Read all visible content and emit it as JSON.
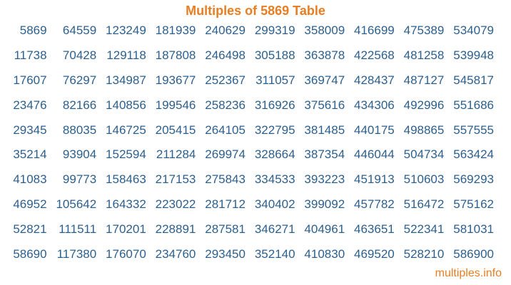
{
  "page": {
    "title": "Multiples of 5869 Table",
    "footer_link": "multiples.info"
  },
  "colors": {
    "title_orange": "#E87E23",
    "number_blue": "#2B5F8E",
    "background": "#FFFFFF"
  },
  "table": {
    "base_number": 5869,
    "rows": [
      [
        5869,
        64559,
        123249,
        181939,
        240629,
        299319,
        358009,
        416699,
        475389,
        534079
      ],
      [
        11738,
        70428,
        129118,
        187808,
        246498,
        305188,
        363878,
        422568,
        481258,
        539948
      ],
      [
        17607,
        76297,
        134987,
        193677,
        252367,
        311057,
        369747,
        428437,
        487127,
        545817
      ],
      [
        23476,
        82166,
        140856,
        199546,
        258236,
        316926,
        375616,
        434306,
        492996,
        551686
      ],
      [
        29345,
        88035,
        146725,
        205415,
        264105,
        322795,
        381485,
        440175,
        498865,
        557555
      ],
      [
        35214,
        93904,
        152594,
        211284,
        269974,
        328664,
        387354,
        446044,
        504734,
        563424
      ],
      [
        41083,
        99773,
        158463,
        217153,
        275843,
        334533,
        393223,
        451913,
        510603,
        569293
      ],
      [
        46952,
        105642,
        164332,
        223022,
        281712,
        340402,
        399092,
        457782,
        516472,
        575162
      ],
      [
        52821,
        111511,
        170201,
        228891,
        287581,
        346271,
        404961,
        463651,
        522341,
        581031
      ],
      [
        58690,
        117380,
        176070,
        234760,
        293450,
        352140,
        410830,
        469520,
        528210,
        586900
      ]
    ]
  }
}
